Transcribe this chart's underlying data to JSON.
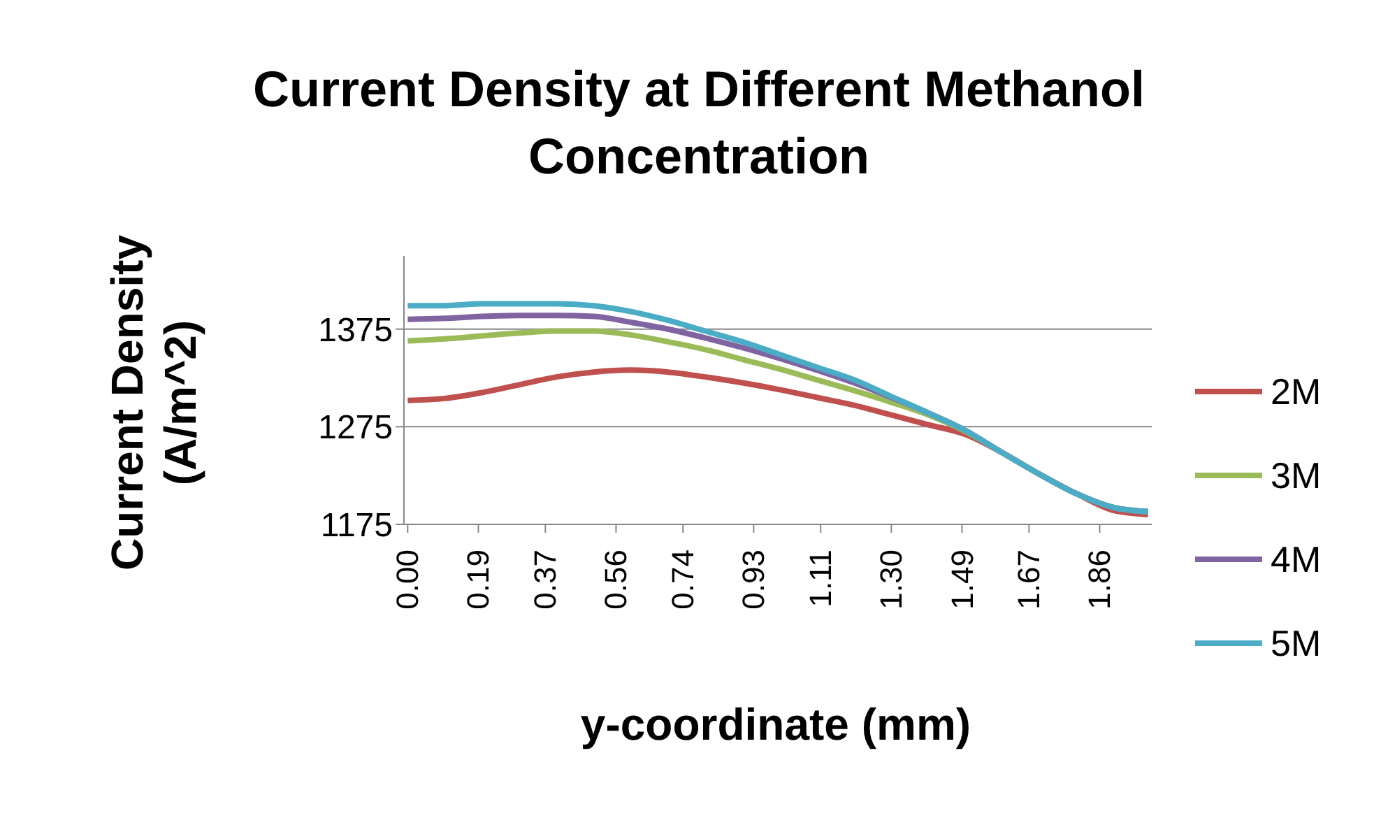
{
  "chart_data": {
    "type": "line",
    "title": "Current Density at Different Methanol Concentration",
    "xlabel": "y-coordinate (mm)",
    "ylabel": "Current Density (A/m^2)",
    "x": [
      0,
      0.1,
      0.2,
      0.3,
      0.4,
      0.5,
      0.6,
      0.7,
      0.8,
      0.9,
      1.0,
      1.1,
      1.2,
      1.3,
      1.4,
      1.5,
      1.6,
      1.7,
      1.8,
      1.9,
      1.99
    ],
    "series": [
      {
        "name": "2M",
        "color": "#c0504d",
        "values": [
          1302,
          1304,
          1310,
          1318,
          1326,
          1331,
          1333,
          1331,
          1326,
          1320,
          1313,
          1305,
          1297,
          1287,
          1277,
          1267,
          1248,
          1226,
          1206,
          1189,
          1185
        ]
      },
      {
        "name": "3M",
        "color": "#9bbb59",
        "values": [
          1363,
          1365,
          1368,
          1371,
          1373,
          1373,
          1369,
          1362,
          1354,
          1344,
          1334,
          1323,
          1312,
          1300,
          1287,
          1270,
          1248,
          1226,
          1206,
          1192,
          1188
        ]
      },
      {
        "name": "4M",
        "color": "#8064a2",
        "values": [
          1385,
          1386,
          1388,
          1389,
          1389,
          1388,
          1382,
          1375,
          1366,
          1356,
          1345,
          1333,
          1320,
          1305,
          1289,
          1271,
          1248,
          1226,
          1206,
          1192,
          1188
        ]
      },
      {
        "name": "5M",
        "color": "#4bacc6",
        "values": [
          1399,
          1399,
          1401,
          1401,
          1401,
          1399,
          1393,
          1384,
          1373,
          1362,
          1349,
          1336,
          1323,
          1306,
          1289,
          1271,
          1248,
          1226,
          1206,
          1192,
          1188
        ]
      }
    ],
    "xlim": [
      -0.01,
      2.0
    ],
    "xticks": [
      {
        "value": 0,
        "label": "0.00"
      },
      0.19,
      0.37,
      0.56,
      0.74,
      0.93,
      1.11,
      {
        "value": 1.3,
        "label": "1.30"
      },
      1.49,
      1.67,
      1.86
    ],
    "ylim": [
      1175,
      1450
    ],
    "yticks": [
      1175,
      1275,
      1375
    ],
    "grid": "y",
    "legend": "right",
    "marker": "none"
  }
}
